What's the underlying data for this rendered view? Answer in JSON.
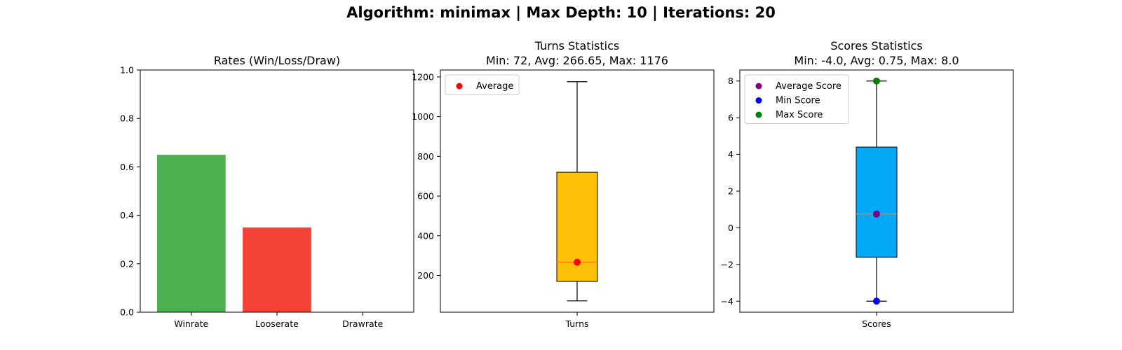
{
  "suptitle": "Algorithm: minimax | Max Depth: 10 | Iterations: 20",
  "chart_data": [
    {
      "type": "bar",
      "title": "Rates (Win/Loss/Draw)",
      "categories": [
        "Winrate",
        "Looserate",
        "Drawrate"
      ],
      "values": [
        0.65,
        0.35,
        0.0
      ],
      "colors": [
        "#4caf50",
        "#f44336",
        "#2196f3"
      ],
      "ylim": [
        0,
        1
      ],
      "yticks": [
        0.0,
        0.2,
        0.4,
        0.6,
        0.8,
        1.0
      ],
      "ytick_labels": [
        "0.0",
        "0.2",
        "0.4",
        "0.6",
        "0.8",
        "1.0"
      ],
      "grid": false
    },
    {
      "type": "box",
      "title_lines": [
        "Turns Statistics",
        "Min: 72, Avg: 266.65, Max: 1176"
      ],
      "category": "Turns",
      "box": {
        "min": 72,
        "q1": 170,
        "median": 266,
        "q3": 720,
        "max": 1176
      },
      "box_color": "#ffc107",
      "median_color": "#ff7f0e",
      "points": [
        {
          "label": "Average",
          "value": 266.65,
          "color": "#ff0000"
        }
      ],
      "ylim": [
        15,
        1235
      ],
      "yticks": [
        200,
        400,
        600,
        800,
        1000,
        1200
      ],
      "ytick_labels": [
        "200",
        "400",
        "600",
        "800",
        "1000",
        "1200"
      ],
      "legend": [
        "Average"
      ],
      "legend_position": "top-left",
      "grid": false
    },
    {
      "type": "box",
      "title_lines": [
        "Scores Statistics",
        "Min: -4.0, Avg: 0.75, Max: 8.0"
      ],
      "category": "Scores",
      "box": {
        "min": -4.0,
        "q1": -1.6,
        "median": 0.75,
        "q3": 4.4,
        "max": 8.0
      },
      "box_color": "#03a9f4",
      "median_color": "#ff7f0e",
      "points": [
        {
          "label": "Average Score",
          "value": 0.75,
          "color": "#800080"
        },
        {
          "label": "Min Score",
          "value": -4.0,
          "color": "#0000ff"
        },
        {
          "label": "Max Score",
          "value": 8.0,
          "color": "#008000"
        }
      ],
      "ylim": [
        -4.6,
        8.6
      ],
      "yticks": [
        -4,
        -2,
        0,
        2,
        4,
        6,
        8
      ],
      "ytick_labels": [
        "−4",
        "−2",
        "0",
        "2",
        "4",
        "6",
        "8"
      ],
      "legend": [
        "Average Score",
        "Min Score",
        "Max Score"
      ],
      "legend_position": "top-left",
      "grid": false
    }
  ]
}
